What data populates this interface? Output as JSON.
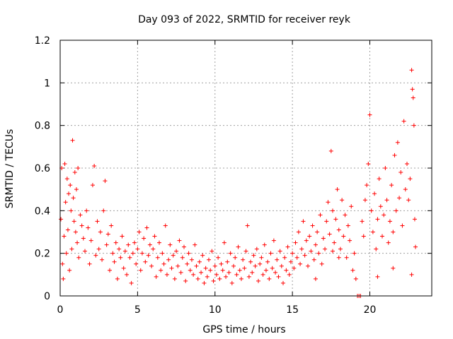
{
  "chart_data": {
    "type": "scatter",
    "title": "Day 093 of 2022, SRMTID for receiver reyk",
    "xlabel": "GPS time / hours",
    "ylabel": "SRMTID / TECUs",
    "xlim": [
      0,
      24
    ],
    "ylim": [
      0,
      1.2
    ],
    "xticks": [
      0,
      5,
      10,
      15,
      20
    ],
    "yticks": [
      0,
      0.2,
      0.4,
      0.6,
      0.8,
      1,
      1.2
    ],
    "xtick_labels": [
      "0",
      "5",
      "10",
      "15",
      "20"
    ],
    "ytick_labels": [
      "0",
      "0.2",
      "0.4",
      "0.6",
      "0.8",
      "1",
      "1.2"
    ],
    "grid": true,
    "marker": "+",
    "series": [
      {
        "name": "SRMTID",
        "color": "#ff0000",
        "points": [
          [
            0.05,
            0.36
          ],
          [
            0.1,
            0.6
          ],
          [
            0.15,
            0.15
          ],
          [
            0.2,
            0.08
          ],
          [
            0.25,
            0.28
          ],
          [
            0.3,
            0.62
          ],
          [
            0.35,
            0.44
          ],
          [
            0.4,
            0.2
          ],
          [
            0.45,
            0.55
          ],
          [
            0.5,
            0.31
          ],
          [
            0.55,
            0.48
          ],
          [
            0.6,
            0.12
          ],
          [
            0.65,
            0.52
          ],
          [
            0.7,
            0.4
          ],
          [
            0.75,
            0.22
          ],
          [
            0.8,
            0.73
          ],
          [
            0.85,
            0.46
          ],
          [
            0.9,
            0.35
          ],
          [
            0.95,
            0.58
          ],
          [
            1.0,
            0.3
          ],
          [
            1.05,
            0.5
          ],
          [
            1.1,
            0.25
          ],
          [
            1.15,
            0.6
          ],
          [
            1.2,
            0.18
          ],
          [
            1.3,
            0.38
          ],
          [
            1.4,
            0.33
          ],
          [
            1.5,
            0.27
          ],
          [
            1.6,
            0.21
          ],
          [
            1.7,
            0.4
          ],
          [
            1.8,
            0.32
          ],
          [
            1.9,
            0.15
          ],
          [
            2.0,
            0.26
          ],
          [
            2.1,
            0.52
          ],
          [
            2.2,
            0.61
          ],
          [
            2.3,
            0.19
          ],
          [
            2.4,
            0.35
          ],
          [
            2.5,
            0.22
          ],
          [
            2.6,
            0.3
          ],
          [
            2.7,
            0.17
          ],
          [
            2.8,
            0.4
          ],
          [
            2.9,
            0.54
          ],
          [
            3.0,
            0.24
          ],
          [
            3.1,
            0.29
          ],
          [
            3.2,
            0.12
          ],
          [
            3.3,
            0.33
          ],
          [
            3.4,
            0.2
          ],
          [
            3.5,
            0.16
          ],
          [
            3.6,
            0.25
          ],
          [
            3.7,
            0.08
          ],
          [
            3.8,
            0.22
          ],
          [
            3.9,
            0.18
          ],
          [
            4.0,
            0.28
          ],
          [
            4.1,
            0.13
          ],
          [
            4.2,
            0.21
          ],
          [
            4.3,
            0.1
          ],
          [
            4.4,
            0.24
          ],
          [
            4.5,
            0.18
          ],
          [
            4.6,
            0.06
          ],
          [
            4.7,
            0.2
          ],
          [
            4.8,
            0.25
          ],
          [
            4.9,
            0.15
          ],
          [
            5.0,
            0.22
          ],
          [
            5.1,
            0.3
          ],
          [
            5.2,
            0.12
          ],
          [
            5.3,
            0.2
          ],
          [
            5.4,
            0.27
          ],
          [
            5.5,
            0.16
          ],
          [
            5.6,
            0.32
          ],
          [
            5.7,
            0.19
          ],
          [
            5.8,
            0.24
          ],
          [
            5.9,
            0.14
          ],
          [
            6.0,
            0.22
          ],
          [
            6.1,
            0.28
          ],
          [
            6.2,
            0.09
          ],
          [
            6.3,
            0.18
          ],
          [
            6.4,
            0.25
          ],
          [
            6.5,
            0.12
          ],
          [
            6.6,
            0.2
          ],
          [
            6.7,
            0.15
          ],
          [
            6.8,
            0.33
          ],
          [
            6.9,
            0.1
          ],
          [
            7.0,
            0.17
          ],
          [
            7.1,
            0.24
          ],
          [
            7.2,
            0.13
          ],
          [
            7.3,
            0.19
          ],
          [
            7.4,
            0.08
          ],
          [
            7.5,
            0.21
          ],
          [
            7.6,
            0.14
          ],
          [
            7.7,
            0.26
          ],
          [
            7.8,
            0.11
          ],
          [
            7.9,
            0.18
          ],
          [
            8.0,
            0.23
          ],
          [
            8.1,
            0.07
          ],
          [
            8.2,
            0.15
          ],
          [
            8.3,
            0.2
          ],
          [
            8.4,
            0.12
          ],
          [
            8.5,
            0.17
          ],
          [
            8.6,
            0.1
          ],
          [
            8.7,
            0.24
          ],
          [
            8.8,
            0.14
          ],
          [
            8.9,
            0.08
          ],
          [
            9.0,
            0.16
          ],
          [
            9.1,
            0.11
          ],
          [
            9.2,
            0.19
          ],
          [
            9.3,
            0.06
          ],
          [
            9.4,
            0.13
          ],
          [
            9.5,
            0.09
          ],
          [
            9.6,
            0.17
          ],
          [
            9.7,
            0.12
          ],
          [
            9.8,
            0.21
          ],
          [
            9.9,
            0.07
          ],
          [
            10.0,
            0.14
          ],
          [
            10.1,
            0.1
          ],
          [
            10.2,
            0.18
          ],
          [
            10.3,
            0.08
          ],
          [
            10.4,
            0.15
          ],
          [
            10.5,
            0.12
          ],
          [
            10.6,
            0.25
          ],
          [
            10.7,
            0.09
          ],
          [
            10.8,
            0.16
          ],
          [
            10.9,
            0.11
          ],
          [
            11.0,
            0.2
          ],
          [
            11.1,
            0.06
          ],
          [
            11.2,
            0.14
          ],
          [
            11.3,
            0.18
          ],
          [
            11.4,
            0.1
          ],
          [
            11.5,
            0.23
          ],
          [
            11.6,
            0.12
          ],
          [
            11.7,
            0.08
          ],
          [
            11.8,
            0.17
          ],
          [
            11.9,
            0.13
          ],
          [
            12.0,
            0.21
          ],
          [
            12.1,
            0.33
          ],
          [
            12.2,
            0.09
          ],
          [
            12.3,
            0.16
          ],
          [
            12.4,
            0.11
          ],
          [
            12.5,
            0.19
          ],
          [
            12.6,
            0.14
          ],
          [
            12.7,
            0.22
          ],
          [
            12.8,
            0.07
          ],
          [
            12.9,
            0.15
          ],
          [
            13.0,
            0.18
          ],
          [
            13.1,
            0.1
          ],
          [
            13.2,
            0.24
          ],
          [
            13.3,
            0.12
          ],
          [
            13.4,
            0.16
          ],
          [
            13.5,
            0.08
          ],
          [
            13.6,
            0.2
          ],
          [
            13.7,
            0.13
          ],
          [
            13.8,
            0.26
          ],
          [
            13.9,
            0.11
          ],
          [
            14.0,
            0.17
          ],
          [
            14.1,
            0.09
          ],
          [
            14.2,
            0.21
          ],
          [
            14.3,
            0.14
          ],
          [
            14.4,
            0.06
          ],
          [
            14.5,
            0.18
          ],
          [
            14.6,
            0.12
          ],
          [
            14.7,
            0.23
          ],
          [
            14.8,
            0.1
          ],
          [
            14.9,
            0.16
          ],
          [
            15.0,
            0.2
          ],
          [
            15.1,
            0.13
          ],
          [
            15.2,
            0.25
          ],
          [
            15.3,
            0.18
          ],
          [
            15.4,
            0.3
          ],
          [
            15.5,
            0.15
          ],
          [
            15.6,
            0.22
          ],
          [
            15.7,
            0.35
          ],
          [
            15.8,
            0.19
          ],
          [
            15.9,
            0.26
          ],
          [
            16.0,
            0.14
          ],
          [
            16.1,
            0.28
          ],
          [
            16.2,
            0.21
          ],
          [
            16.3,
            0.33
          ],
          [
            16.4,
            0.17
          ],
          [
            16.5,
            0.24
          ],
          [
            16.6,
            0.3
          ],
          [
            16.7,
            0.2
          ],
          [
            16.8,
            0.38
          ],
          [
            16.9,
            0.15
          ],
          [
            17.0,
            0.27
          ],
          [
            17.1,
            0.22
          ],
          [
            17.2,
            0.35
          ],
          [
            17.3,
            0.44
          ],
          [
            17.4,
            0.29
          ],
          [
            17.5,
            0.68
          ],
          [
            17.6,
            0.4
          ],
          [
            17.7,
            0.25
          ],
          [
            17.8,
            0.36
          ],
          [
            17.9,
            0.5
          ],
          [
            18.0,
            0.31
          ],
          [
            18.1,
            0.22
          ],
          [
            18.2,
            0.45
          ],
          [
            18.3,
            0.28
          ],
          [
            18.4,
            0.38
          ],
          [
            18.5,
            0.18
          ],
          [
            18.6,
            0.33
          ],
          [
            18.7,
            0.26
          ],
          [
            18.8,
            0.42
          ],
          [
            18.9,
            0.12
          ],
          [
            19.0,
            0.2
          ],
          [
            19.1,
            0.08
          ],
          [
            19.2,
            0.0
          ],
          [
            19.3,
            0.0
          ],
          [
            19.4,
            0.0
          ],
          [
            19.5,
            0.35
          ],
          [
            19.6,
            0.28
          ],
          [
            19.7,
            0.45
          ],
          [
            19.8,
            0.52
          ],
          [
            19.9,
            0.62
          ],
          [
            20.0,
            0.85
          ],
          [
            20.1,
            0.4
          ],
          [
            20.2,
            0.3
          ],
          [
            20.3,
            0.48
          ],
          [
            20.4,
            0.22
          ],
          [
            20.5,
            0.36
          ],
          [
            20.6,
            0.55
          ],
          [
            20.7,
            0.42
          ],
          [
            20.8,
            0.28
          ],
          [
            20.9,
            0.38
          ],
          [
            21.0,
            0.6
          ],
          [
            21.1,
            0.45
          ],
          [
            21.2,
            0.25
          ],
          [
            21.3,
            0.35
          ],
          [
            21.4,
            0.52
          ],
          [
            21.5,
            0.3
          ],
          [
            21.6,
            0.66
          ],
          [
            21.7,
            0.4
          ],
          [
            21.8,
            0.72
          ],
          [
            21.9,
            0.46
          ],
          [
            22.0,
            0.58
          ],
          [
            22.1,
            0.33
          ],
          [
            22.2,
            0.82
          ],
          [
            22.3,
            0.5
          ],
          [
            22.4,
            0.62
          ],
          [
            22.5,
            0.45
          ],
          [
            22.6,
            0.55
          ],
          [
            22.7,
            1.06
          ],
          [
            22.75,
            0.97
          ],
          [
            22.8,
            0.93
          ],
          [
            22.85,
            0.8
          ],
          [
            22.9,
            0.36
          ],
          [
            22.95,
            0.23
          ],
          [
            22.7,
            0.1
          ],
          [
            21.5,
            0.13
          ],
          [
            20.5,
            0.09
          ],
          [
            18.0,
            0.18
          ],
          [
            17.6,
            0.21
          ],
          [
            16.5,
            0.08
          ]
        ]
      }
    ]
  }
}
